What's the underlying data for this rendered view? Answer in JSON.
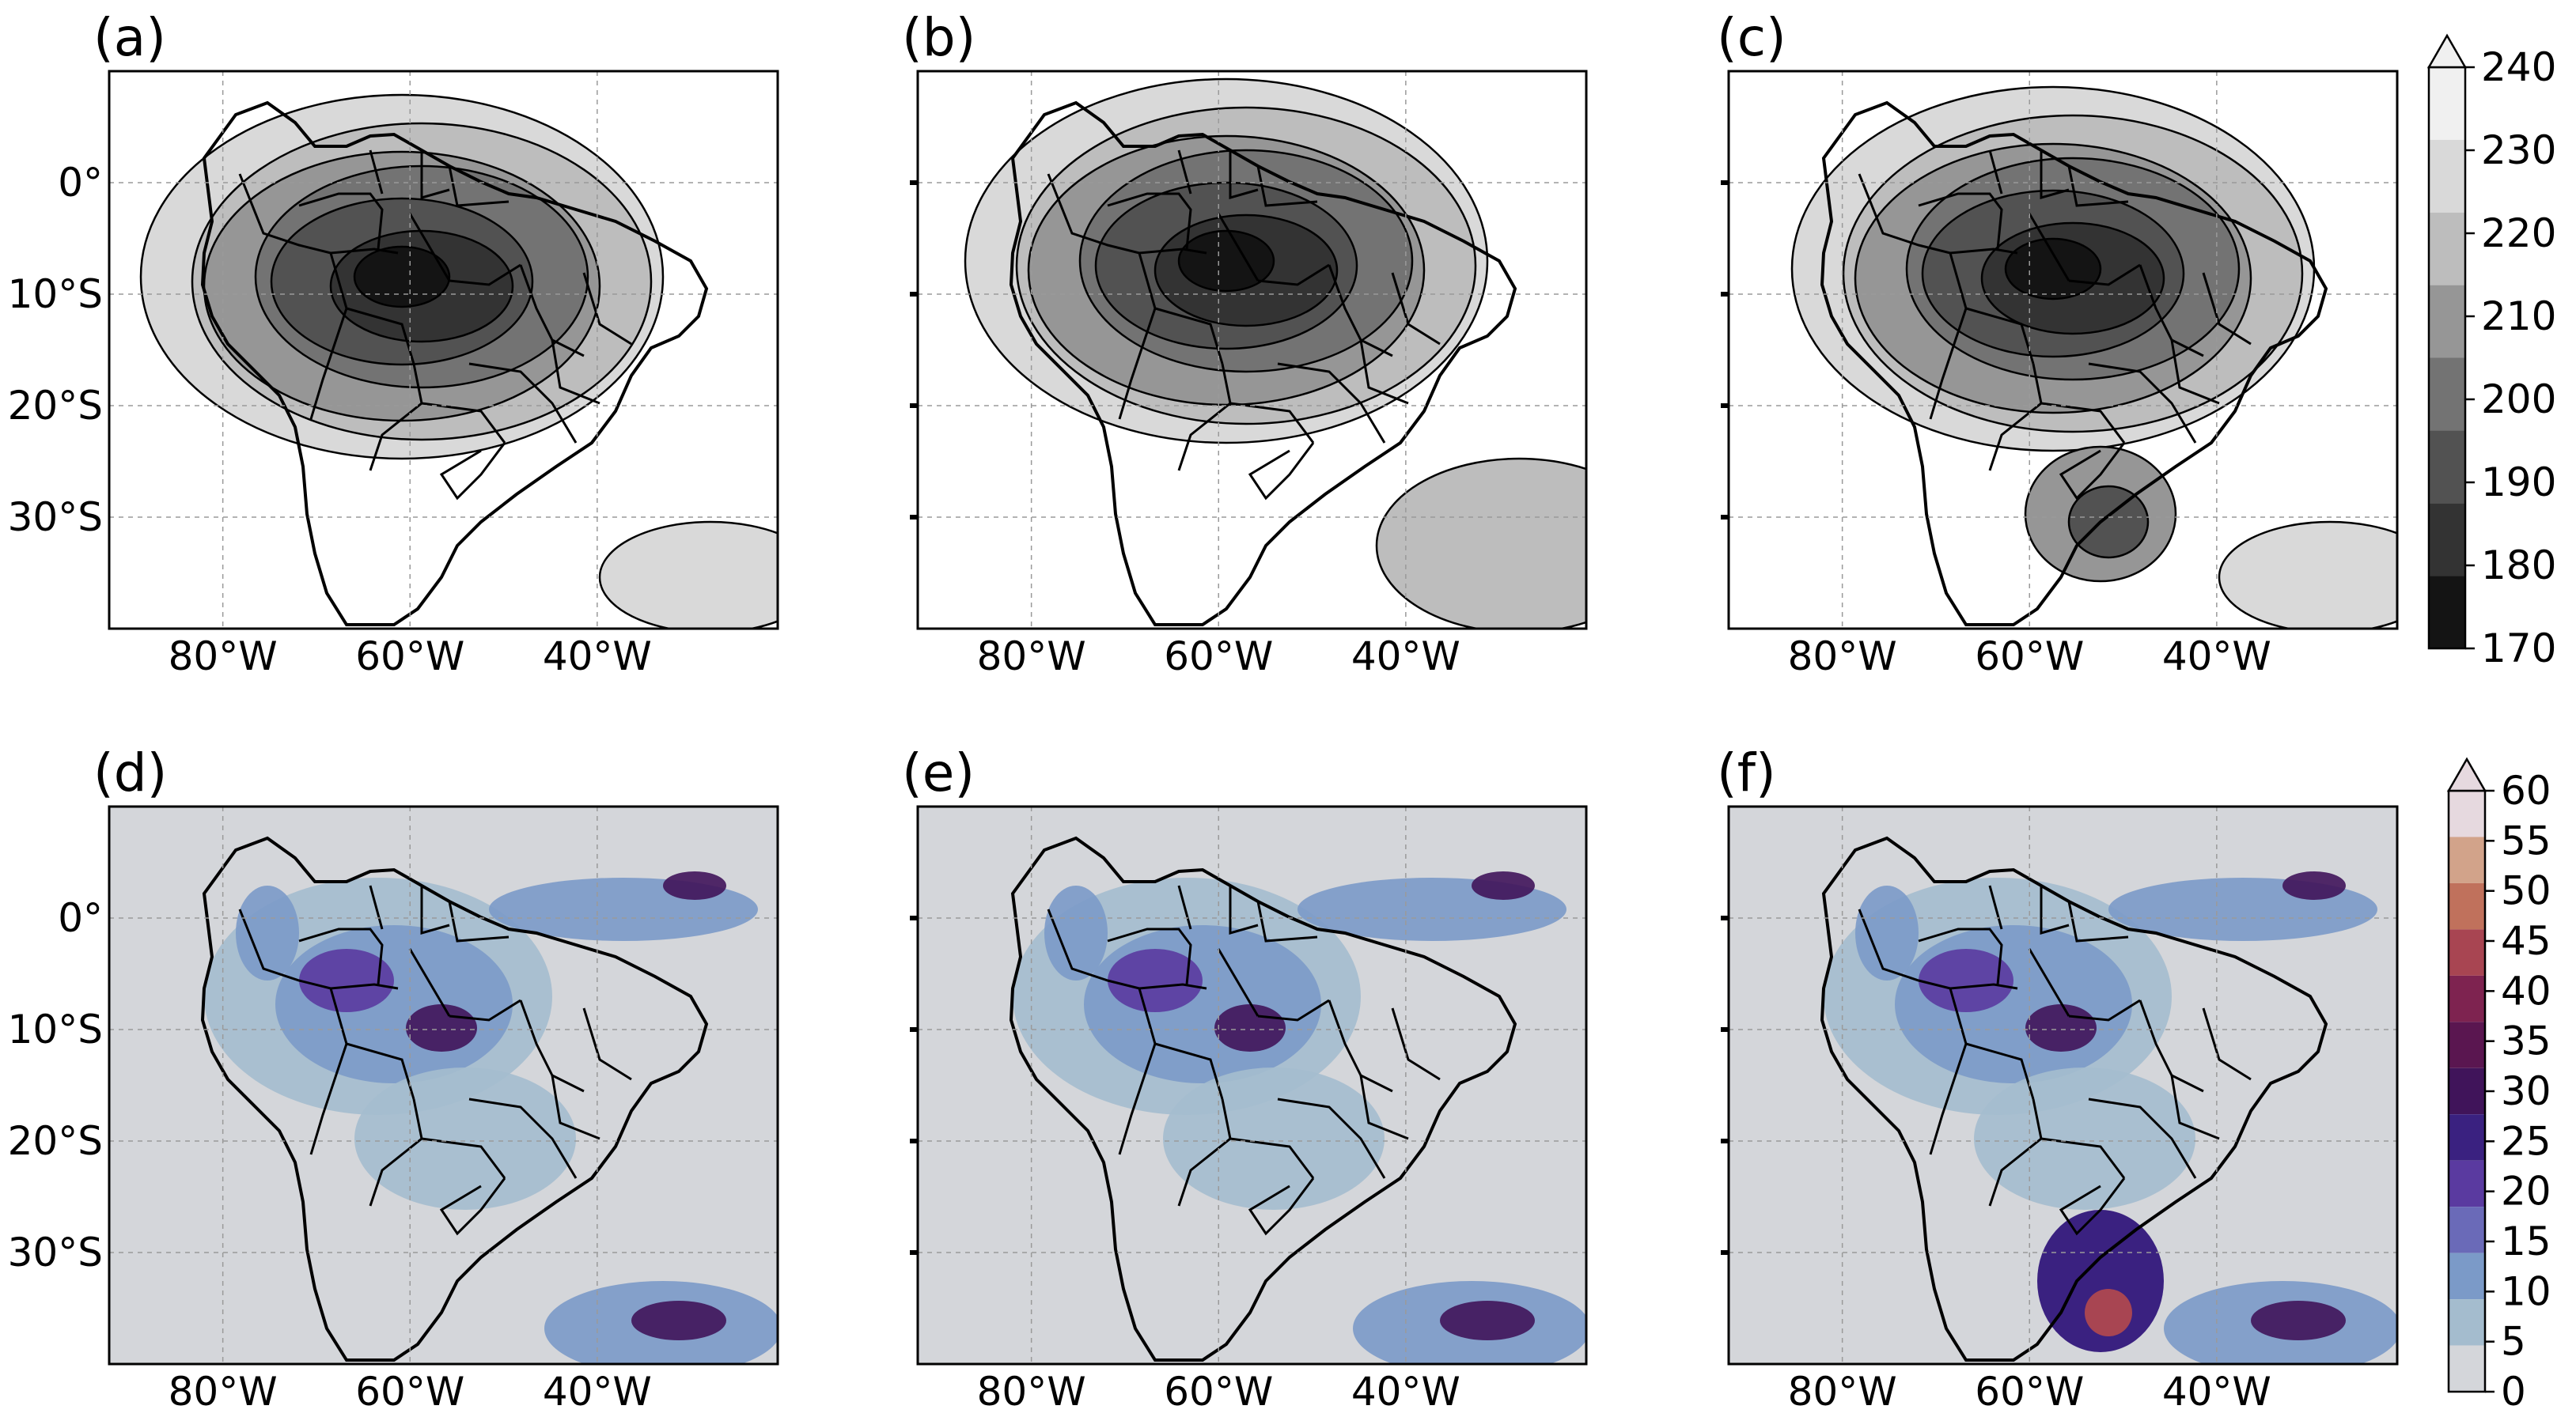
{
  "panels": [
    {
      "id": "a",
      "label": "(a)",
      "row": 0,
      "col": 0,
      "type": "cloudtop"
    },
    {
      "id": "b",
      "label": "(b)",
      "row": 0,
      "col": 1,
      "type": "cloudtop"
    },
    {
      "id": "c",
      "label": "(c)",
      "row": 0,
      "col": 2,
      "type": "cloudtop"
    },
    {
      "id": "d",
      "label": "(d)",
      "row": 1,
      "col": 0,
      "type": "precip"
    },
    {
      "id": "e",
      "label": "(e)",
      "row": 1,
      "col": 1,
      "type": "precip"
    },
    {
      "id": "f",
      "label": "(f)",
      "row": 1,
      "col": 2,
      "type": "precip"
    }
  ],
  "axes": {
    "lon_labels": [
      "80°W",
      "60°W",
      "40°W"
    ],
    "lat_labels": [
      "0°",
      "10°S",
      "20°S",
      "30°S"
    ]
  },
  "colorbar_top": {
    "ticks": [
      "240",
      "230",
      "220",
      "210",
      "200",
      "190",
      "180",
      "170"
    ],
    "colors": [
      "#f0f0f0",
      "#d9d9d9",
      "#bdbdbd",
      "#969696",
      "#737373",
      "#525252",
      "#333333",
      "#141414"
    ]
  },
  "colorbar_bottom": {
    "ticks": [
      "60",
      "55",
      "50",
      "45",
      "40",
      "35",
      "30",
      "25",
      "20",
      "15",
      "10",
      "5",
      "0"
    ],
    "colors": [
      "#e6d9df",
      "#d2a38a",
      "#c0715c",
      "#a84552",
      "#7e2350",
      "#5a1650",
      "#40145a",
      "#3a2180",
      "#5a3aa0",
      "#6a6ab8",
      "#7b9ac8",
      "#a4bcce",
      "#d4d6da"
    ]
  },
  "map_colors": {
    "ocean_gray": "#d4d6da",
    "coast": "#000000",
    "lake": "#9bb8e0"
  }
}
